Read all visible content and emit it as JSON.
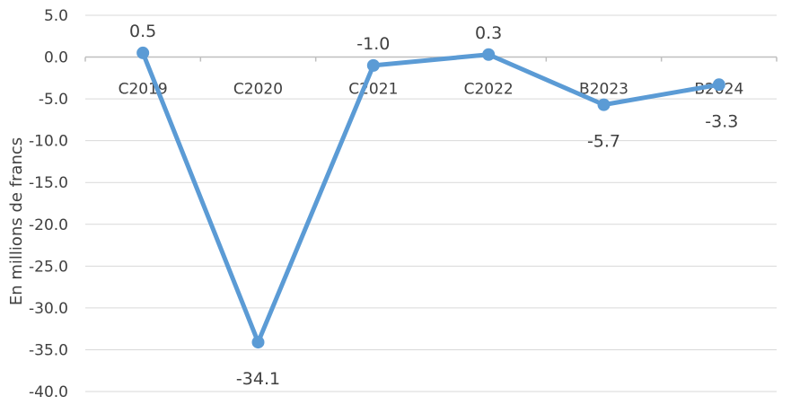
{
  "chart_data": {
    "type": "line",
    "title": "",
    "xlabel": "",
    "ylabel": "En millions de francs",
    "categories": [
      "C2019",
      "C2020",
      "C2021",
      "C2022",
      "B2023",
      "B2024"
    ],
    "series": [
      {
        "values": [
          0.5,
          -34.1,
          -1.0,
          0.3,
          -5.7,
          -3.3
        ]
      }
    ],
    "data_labels": [
      "0.5",
      "-34.1",
      "-1.0",
      "0.3",
      "-5.7",
      "-3.3"
    ],
    "y_ticks": [
      "5.0",
      "0.0",
      "-5.0",
      "-10.0",
      "-15.0",
      "-20.0",
      "-25.0",
      "-30.0",
      "-35.0",
      "-40.0"
    ],
    "y_tick_values": [
      5,
      0,
      -5,
      -10,
      -15,
      -20,
      -25,
      -30,
      -35,
      -40
    ],
    "ylim": [
      -40,
      5
    ],
    "grid": true,
    "legend": "none",
    "colors": {
      "line": "#5b9bd5",
      "grid": "#d9d9d9",
      "axis": "#bfbfbf",
      "text": "#404040"
    }
  }
}
